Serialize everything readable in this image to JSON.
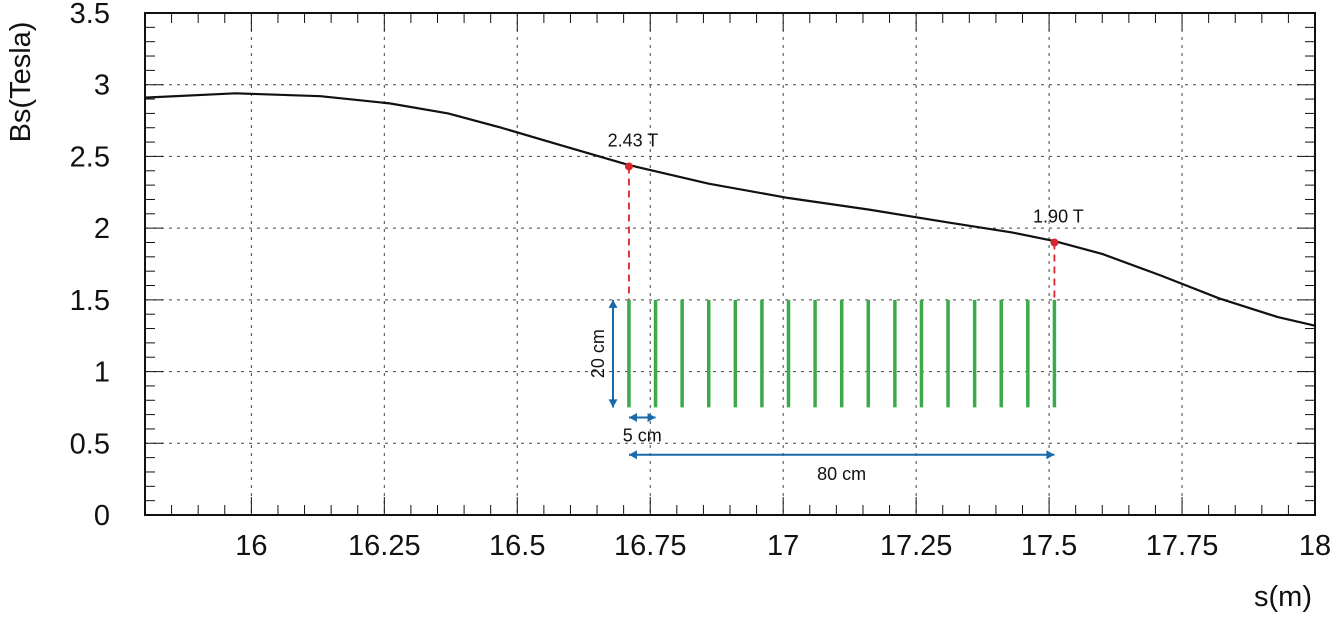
{
  "chart_data": {
    "type": "line",
    "title": "",
    "xlabel": "s(m)",
    "ylabel": "Bs(Tesla)",
    "xlim": [
      15.8,
      18
    ],
    "ylim": [
      0,
      3.5
    ],
    "grid": true,
    "xticks": [
      16,
      16.25,
      16.5,
      16.75,
      17,
      17.25,
      17.5,
      17.75,
      18
    ],
    "xtick_labels": [
      "16",
      "16.25",
      "16.5",
      "16.75",
      "17",
      "17.25",
      "17.5",
      "17.75",
      "18"
    ],
    "yticks": [
      0,
      0.5,
      1,
      1.5,
      2,
      2.5,
      3,
      3.5
    ],
    "ytick_labels": [
      "0",
      "0.5",
      "1",
      "1.5",
      "2",
      "2.5",
      "3",
      "3.5"
    ],
    "series": [
      {
        "color": "#111111",
        "x": [
          15.8,
          15.97,
          16.13,
          16.26,
          16.37,
          16.47,
          16.58,
          16.71,
          16.86,
          17.01,
          17.16,
          17.31,
          17.43,
          17.51,
          17.6,
          17.71,
          17.82,
          17.93,
          18.0
        ],
        "y": [
          2.91,
          2.94,
          2.92,
          2.87,
          2.8,
          2.7,
          2.58,
          2.44,
          2.31,
          2.21,
          2.13,
          2.04,
          1.97,
          1.91,
          1.82,
          1.67,
          1.51,
          1.38,
          1.32
        ]
      }
    ],
    "markers": [
      {
        "x": 16.71,
        "y": 2.43,
        "label": "2.43 T",
        "color": "#d62632"
      },
      {
        "x": 17.51,
        "y": 1.9,
        "label": "1.90 T",
        "color": "#d62632"
      }
    ],
    "plates": {
      "color": "#3aaa4a",
      "x_start": 16.71,
      "spacing": 0.05,
      "count": 17,
      "y_top": 1.5,
      "y_bottom": 0.75
    },
    "dimensions": [
      {
        "label": "20 cm",
        "orientation": "vertical",
        "x": 16.68,
        "from": 0.75,
        "to": 1.5
      },
      {
        "label": "5 cm",
        "orientation": "horizontal",
        "y": 0.68,
        "from": 16.71,
        "to": 16.76
      },
      {
        "label": "80 cm",
        "orientation": "horizontal",
        "y": 0.42,
        "from": 16.71,
        "to": 17.51
      }
    ],
    "dimension_color": "#1a6aaa"
  }
}
